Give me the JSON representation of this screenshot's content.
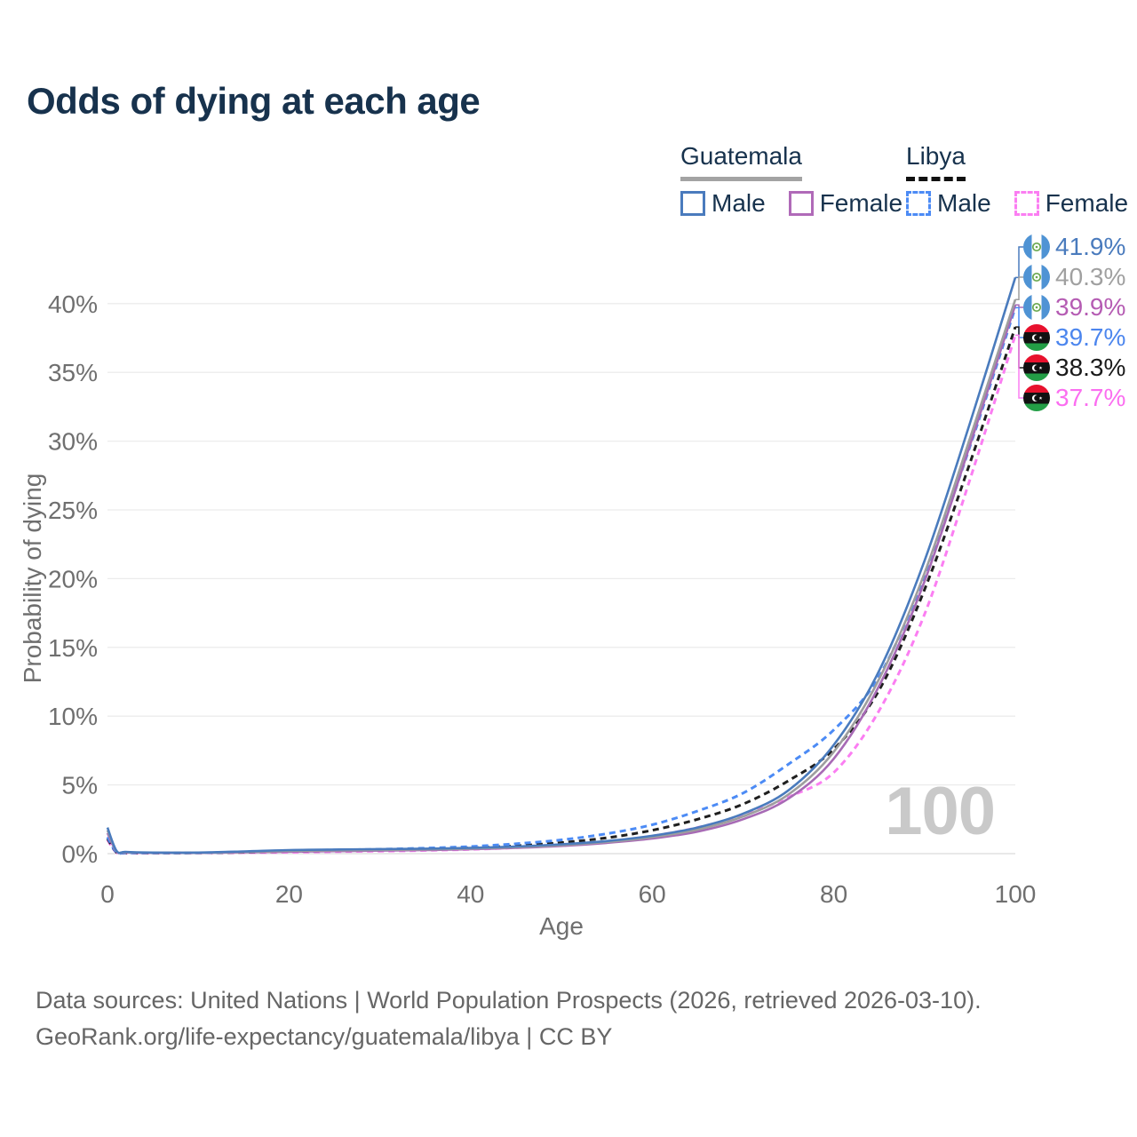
{
  "title": "Odds of dying at each age",
  "watermark": "100",
  "legend": {
    "groups": [
      {
        "name": "Guatemala",
        "line_style": "solid",
        "underline_color": "#a3a3a3",
        "items": [
          {
            "label": "Male",
            "color": "#4a7bbd"
          },
          {
            "label": "Female",
            "color": "#b06ab8"
          }
        ]
      },
      {
        "name": "Libya",
        "line_style": "dashed",
        "underline_color": "#111111",
        "items": [
          {
            "label": "Male",
            "color": "#4c8bf5"
          },
          {
            "label": "Female",
            "color": "#fb7ef2"
          }
        ]
      }
    ]
  },
  "y_axis": {
    "label": "Probability of dying",
    "ticks": [
      "0%",
      "5%",
      "10%",
      "15%",
      "20%",
      "25%",
      "30%",
      "35%",
      "40%"
    ]
  },
  "x_axis": {
    "label": "Age",
    "ticks": [
      0,
      20,
      40,
      60,
      80,
      100
    ]
  },
  "end_labels": [
    {
      "country": "guatemala",
      "value": "41.9%",
      "color": "#4a7bbd"
    },
    {
      "country": "guatemala",
      "value": "40.3%",
      "color": "#a0a0a0"
    },
    {
      "country": "guatemala",
      "value": "39.9%",
      "color": "#b55cb3"
    },
    {
      "country": "libya",
      "value": "39.7%",
      "color": "#4c86ee"
    },
    {
      "country": "libya",
      "value": "38.3%",
      "color": "#1a1a1a"
    },
    {
      "country": "libya",
      "value": "37.7%",
      "color": "#fb6ef0"
    }
  ],
  "footer": {
    "line1": "Data sources: United Nations | World Population Prospects (2026, retrieved 2026-03-10).",
    "line2": "GeoRank.org/life-expectancy/guatemala/libya | CC BY"
  },
  "chart_data": {
    "type": "line",
    "title": "Odds of dying at each age",
    "xlabel": "Age",
    "ylabel": "Probability of dying",
    "xlim": [
      0,
      100
    ],
    "ylim_pct": [
      0,
      42
    ],
    "y_tick_step_pct": 5,
    "grid": "horizontal-only",
    "legend_position": "top-right",
    "ages": [
      0,
      1,
      2,
      5,
      10,
      15,
      20,
      25,
      30,
      35,
      40,
      45,
      50,
      55,
      60,
      65,
      70,
      75,
      80,
      85,
      90,
      95,
      100
    ],
    "series": [
      {
        "name": "Guatemala — Male",
        "country": "Guatemala",
        "sex": "male",
        "style": "solid",
        "color": "#4a7bbd",
        "end_value_pct": 41.9,
        "values_pct": [
          1.9,
          0.2,
          0.12,
          0.08,
          0.08,
          0.16,
          0.26,
          0.3,
          0.33,
          0.36,
          0.42,
          0.52,
          0.68,
          0.92,
          1.3,
          1.9,
          2.9,
          4.6,
          7.9,
          13.3,
          21.3,
          31.3,
          41.9
        ]
      },
      {
        "name": "Guatemala — Both sexes",
        "country": "Guatemala",
        "sex": "all",
        "style": "solid",
        "color": "#9e9e9e",
        "end_value_pct": 40.3,
        "values_pct": [
          1.7,
          0.18,
          0.1,
          0.07,
          0.07,
          0.13,
          0.2,
          0.24,
          0.27,
          0.31,
          0.37,
          0.47,
          0.62,
          0.85,
          1.2,
          1.75,
          2.7,
          4.3,
          7.4,
          12.7,
          20.4,
          30.2,
          40.3
        ]
      },
      {
        "name": "Guatemala — Female",
        "country": "Guatemala",
        "sex": "female",
        "style": "solid",
        "color": "#a76ab5",
        "end_value_pct": 39.9,
        "values_pct": [
          1.5,
          0.16,
          0.09,
          0.06,
          0.06,
          0.1,
          0.14,
          0.18,
          0.22,
          0.26,
          0.32,
          0.42,
          0.56,
          0.78,
          1.1,
          1.6,
          2.5,
          4.0,
          6.9,
          12.2,
          19.8,
          29.7,
          39.9
        ]
      },
      {
        "name": "Libya — Male",
        "country": "Libya",
        "sex": "male",
        "style": "dashed",
        "color": "#4c8bf5",
        "end_value_pct": 39.7,
        "values_pct": [
          1.2,
          0.1,
          0.06,
          0.05,
          0.06,
          0.13,
          0.22,
          0.27,
          0.32,
          0.4,
          0.52,
          0.72,
          1.0,
          1.45,
          2.1,
          3.1,
          4.4,
          6.5,
          9.0,
          12.9,
          20.2,
          29.6,
          39.7
        ]
      },
      {
        "name": "Libya — Both sexes",
        "country": "Libya",
        "sex": "all",
        "style": "dashed",
        "color": "#1f1f1f",
        "end_value_pct": 38.3,
        "values_pct": [
          1.1,
          0.09,
          0.06,
          0.045,
          0.055,
          0.1,
          0.16,
          0.2,
          0.25,
          0.31,
          0.41,
          0.57,
          0.8,
          1.15,
          1.7,
          2.5,
          3.6,
          5.3,
          7.6,
          11.9,
          19.2,
          28.4,
          38.3
        ]
      },
      {
        "name": "Libya — Female",
        "country": "Libya",
        "sex": "female",
        "style": "dashed",
        "color": "#fb7ef2",
        "end_value_pct": 37.7,
        "values_pct": [
          1.0,
          0.08,
          0.05,
          0.04,
          0.05,
          0.07,
          0.1,
          0.14,
          0.18,
          0.23,
          0.31,
          0.43,
          0.62,
          0.88,
          1.28,
          1.9,
          2.8,
          4.1,
          5.9,
          10.4,
          17.4,
          27.2,
          37.7
        ]
      }
    ]
  }
}
